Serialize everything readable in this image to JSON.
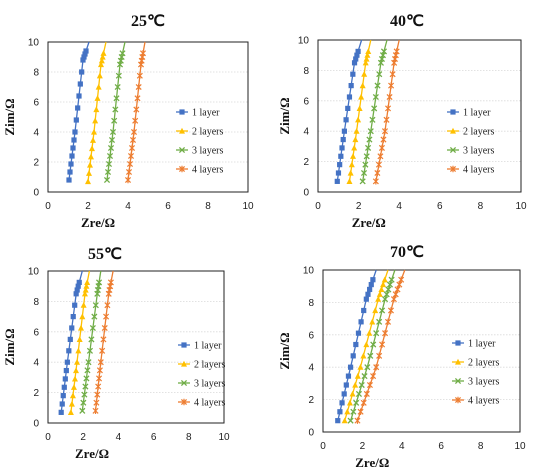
{
  "colors": {
    "1 layer": "#4472C4",
    "2 layers": "#FFC000",
    "3 layers": "#70AD47",
    "4 layers": "#ED7D31"
  },
  "markers": {
    "1 layer": "square",
    "2 layers": "triangle",
    "3 layers": "cross",
    "4 layers": "star"
  },
  "chart_data": [
    {
      "type": "scatter",
      "title": "25℃",
      "xlabel": "Zre/Ω",
      "ylabel": "Zim/Ω",
      "xlim": [
        0,
        10
      ],
      "ylim": [
        0,
        10
      ],
      "xticks": [
        0,
        2,
        4,
        6,
        8,
        10
      ],
      "yticks": [
        0,
        2,
        4,
        6,
        8,
        10
      ],
      "legend": "right",
      "grid": "horizontal",
      "series": [
        {
          "name": "1 layer",
          "x": [
            1.05,
            1.35,
            1.75,
            2.05
          ],
          "y": [
            0.8,
            4.0,
            8.8,
            10.0
          ]
        },
        {
          "name": "2 layers",
          "x": [
            2.0,
            2.3,
            2.65,
            2.9
          ],
          "y": [
            0.7,
            4.0,
            8.5,
            10.0
          ]
        },
        {
          "name": "3 layers",
          "x": [
            2.95,
            3.25,
            3.6,
            3.85
          ],
          "y": [
            0.8,
            4.0,
            8.5,
            10.0
          ]
        },
        {
          "name": "4 layers",
          "x": [
            4.0,
            4.3,
            4.65,
            4.85
          ],
          "y": [
            0.8,
            4.0,
            8.5,
            10.0
          ]
        }
      ]
    },
    {
      "type": "scatter",
      "title": "40℃",
      "xlabel": "Zre/Ω",
      "ylabel": "Zim/Ω",
      "xlim": [
        0,
        10
      ],
      "ylim": [
        0,
        10
      ],
      "xticks": [
        0,
        2,
        4,
        6,
        8,
        10
      ],
      "yticks": [
        0,
        2,
        4,
        6,
        8,
        10
      ],
      "legend": "right",
      "grid": "horizontal",
      "series": [
        {
          "name": "1 layer",
          "x": [
            0.95,
            1.3,
            1.8,
            2.15
          ],
          "y": [
            0.7,
            4.0,
            8.5,
            10.0
          ]
        },
        {
          "name": "2 layers",
          "x": [
            1.55,
            1.9,
            2.35,
            2.6
          ],
          "y": [
            0.7,
            4.0,
            8.5,
            10.0
          ]
        },
        {
          "name": "3 layers",
          "x": [
            2.2,
            2.6,
            3.1,
            3.4
          ],
          "y": [
            0.7,
            4.0,
            8.5,
            10.0
          ]
        },
        {
          "name": "4 layers",
          "x": [
            2.85,
            3.3,
            3.75,
            4.0
          ],
          "y": [
            0.7,
            4.0,
            8.5,
            10.0
          ]
        }
      ]
    },
    {
      "type": "scatter",
      "title": "55℃",
      "xlabel": "Zre/Ω",
      "ylabel": "Zim/Ω",
      "xlim": [
        0,
        10
      ],
      "ylim": [
        0,
        10
      ],
      "xticks": [
        0,
        2,
        4,
        6,
        8,
        10
      ],
      "yticks": [
        0,
        2,
        4,
        6,
        8,
        10
      ],
      "legend": "right",
      "grid": "horizontal",
      "series": [
        {
          "name": "1 layer",
          "x": [
            0.75,
            1.1,
            1.6,
            1.95
          ],
          "y": [
            0.7,
            4.0,
            8.5,
            10.0
          ]
        },
        {
          "name": "2 layers",
          "x": [
            1.3,
            1.65,
            2.1,
            2.35
          ],
          "y": [
            0.7,
            4.0,
            8.5,
            10.0
          ]
        },
        {
          "name": "3 layers",
          "x": [
            1.95,
            2.3,
            2.8,
            3.0
          ],
          "y": [
            0.8,
            4.0,
            8.5,
            10.0
          ]
        },
        {
          "name": "4 layers",
          "x": [
            2.7,
            3.0,
            3.45,
            3.7
          ],
          "y": [
            0.8,
            4.0,
            8.5,
            10.0
          ]
        }
      ]
    },
    {
      "type": "scatter",
      "title": "70℃",
      "xlabel": "Zre/Ω",
      "ylabel": "Zim/Ω",
      "xlim": [
        0,
        10
      ],
      "ylim": [
        0,
        10
      ],
      "xticks": [
        0,
        2,
        4,
        6,
        8,
        10
      ],
      "yticks": [
        0,
        2,
        4,
        6,
        8,
        10
      ],
      "legend": "right",
      "grid": "horizontal",
      "series": [
        {
          "name": "1 layer",
          "x": [
            0.75,
            1.4,
            2.2,
            2.7
          ],
          "y": [
            0.7,
            4.0,
            8.2,
            10.0
          ]
        },
        {
          "name": "2 layers",
          "x": [
            1.1,
            1.9,
            2.8,
            3.3
          ],
          "y": [
            0.7,
            4.0,
            8.2,
            10.0
          ]
        },
        {
          "name": "3 layers",
          "x": [
            1.4,
            2.25,
            3.15,
            3.65
          ],
          "y": [
            0.7,
            4.0,
            8.2,
            10.0
          ]
        },
        {
          "name": "4 layers",
          "x": [
            1.75,
            2.7,
            3.6,
            4.15
          ],
          "y": [
            0.7,
            4.0,
            8.2,
            10.0
          ]
        }
      ]
    }
  ]
}
